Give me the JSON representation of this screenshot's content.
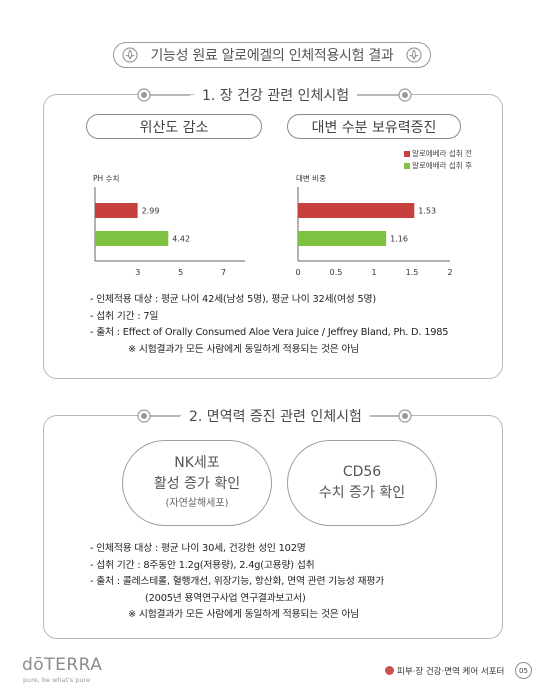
{
  "header": {
    "title": "기능성 원료 알로에겔의 인체적용시험 결과"
  },
  "section1": {
    "title": "1. 장 건강 관련 인체시험",
    "pill_left": "위산도 감소",
    "pill_right": "대변 수분 보유력증진",
    "legend": [
      {
        "label": "알로에베라 섭취 전",
        "color": "#c8403e"
      },
      {
        "label": "알로에베라 섭취 후",
        "color": "#7fc241"
      }
    ],
    "info": [
      "- 인체적용 대상 : 평균 나이 42세(남성 5명), 평균 나이 32세(여성 5명)",
      "- 섭취 기간 : 7일",
      "- 출처 : Effect of Orally Consumed Aloe Vera Juice / Jeffrey Bland, Ph. D. 1985",
      "※ 시험결과가 모든 사람에게 동일하게 적용되는 것은 아님"
    ]
  },
  "chart_data": [
    {
      "type": "bar",
      "orientation": "horizontal",
      "ylabel": "PH 수치",
      "series": [
        {
          "name": "알로에베라 섭취 전",
          "values": [
            2.99
          ]
        },
        {
          "name": "알로에베라 섭취 후",
          "values": [
            4.42
          ]
        }
      ],
      "data_labels": [
        "2.99",
        "4.42"
      ],
      "ticks": [
        "3",
        "5",
        "7"
      ],
      "xlim": [
        1,
        8
      ]
    },
    {
      "type": "bar",
      "orientation": "horizontal",
      "ylabel": "대변 비중",
      "series": [
        {
          "name": "알로에베라 섭취 전",
          "values": [
            1.53
          ]
        },
        {
          "name": "알로에베라 섭취 후",
          "values": [
            1.16
          ]
        }
      ],
      "data_labels": [
        "1.53",
        "1.16"
      ],
      "ticks": [
        "0",
        "0.5",
        "1",
        "1.5",
        "2"
      ],
      "xlim": [
        0,
        2
      ]
    }
  ],
  "section2": {
    "title": "2. 면역력 증진 관련 인체시험",
    "circle_left": {
      "line1": "NK세포",
      "line2": "활성 증가 확인",
      "line3": "(자연살해세포)"
    },
    "circle_right": {
      "line1": "CD56",
      "line2": "수치 증가 확인"
    },
    "info": [
      "- 인체적용 대상 : 평균 나이 30세, 건강한 성인 102명",
      "- 섭취 기간 : 8주동안 1.2g(저용량), 2.4g(고용량) 섭취",
      "- 출처 : 콜레스테롤, 혈행개선, 위장기능, 항산화, 면역 관련 기능성 재평가",
      "(2005년 용역연구사업 연구결과보고서)",
      "※ 시험결과가 모든 사람에게 동일하게 적용되는 것은 아님"
    ]
  },
  "footer": {
    "logo": "dōTERRA",
    "tagline": "pure, be what's pure",
    "category": "피부·장 건강·면역 케어 서포터",
    "page": "05"
  }
}
